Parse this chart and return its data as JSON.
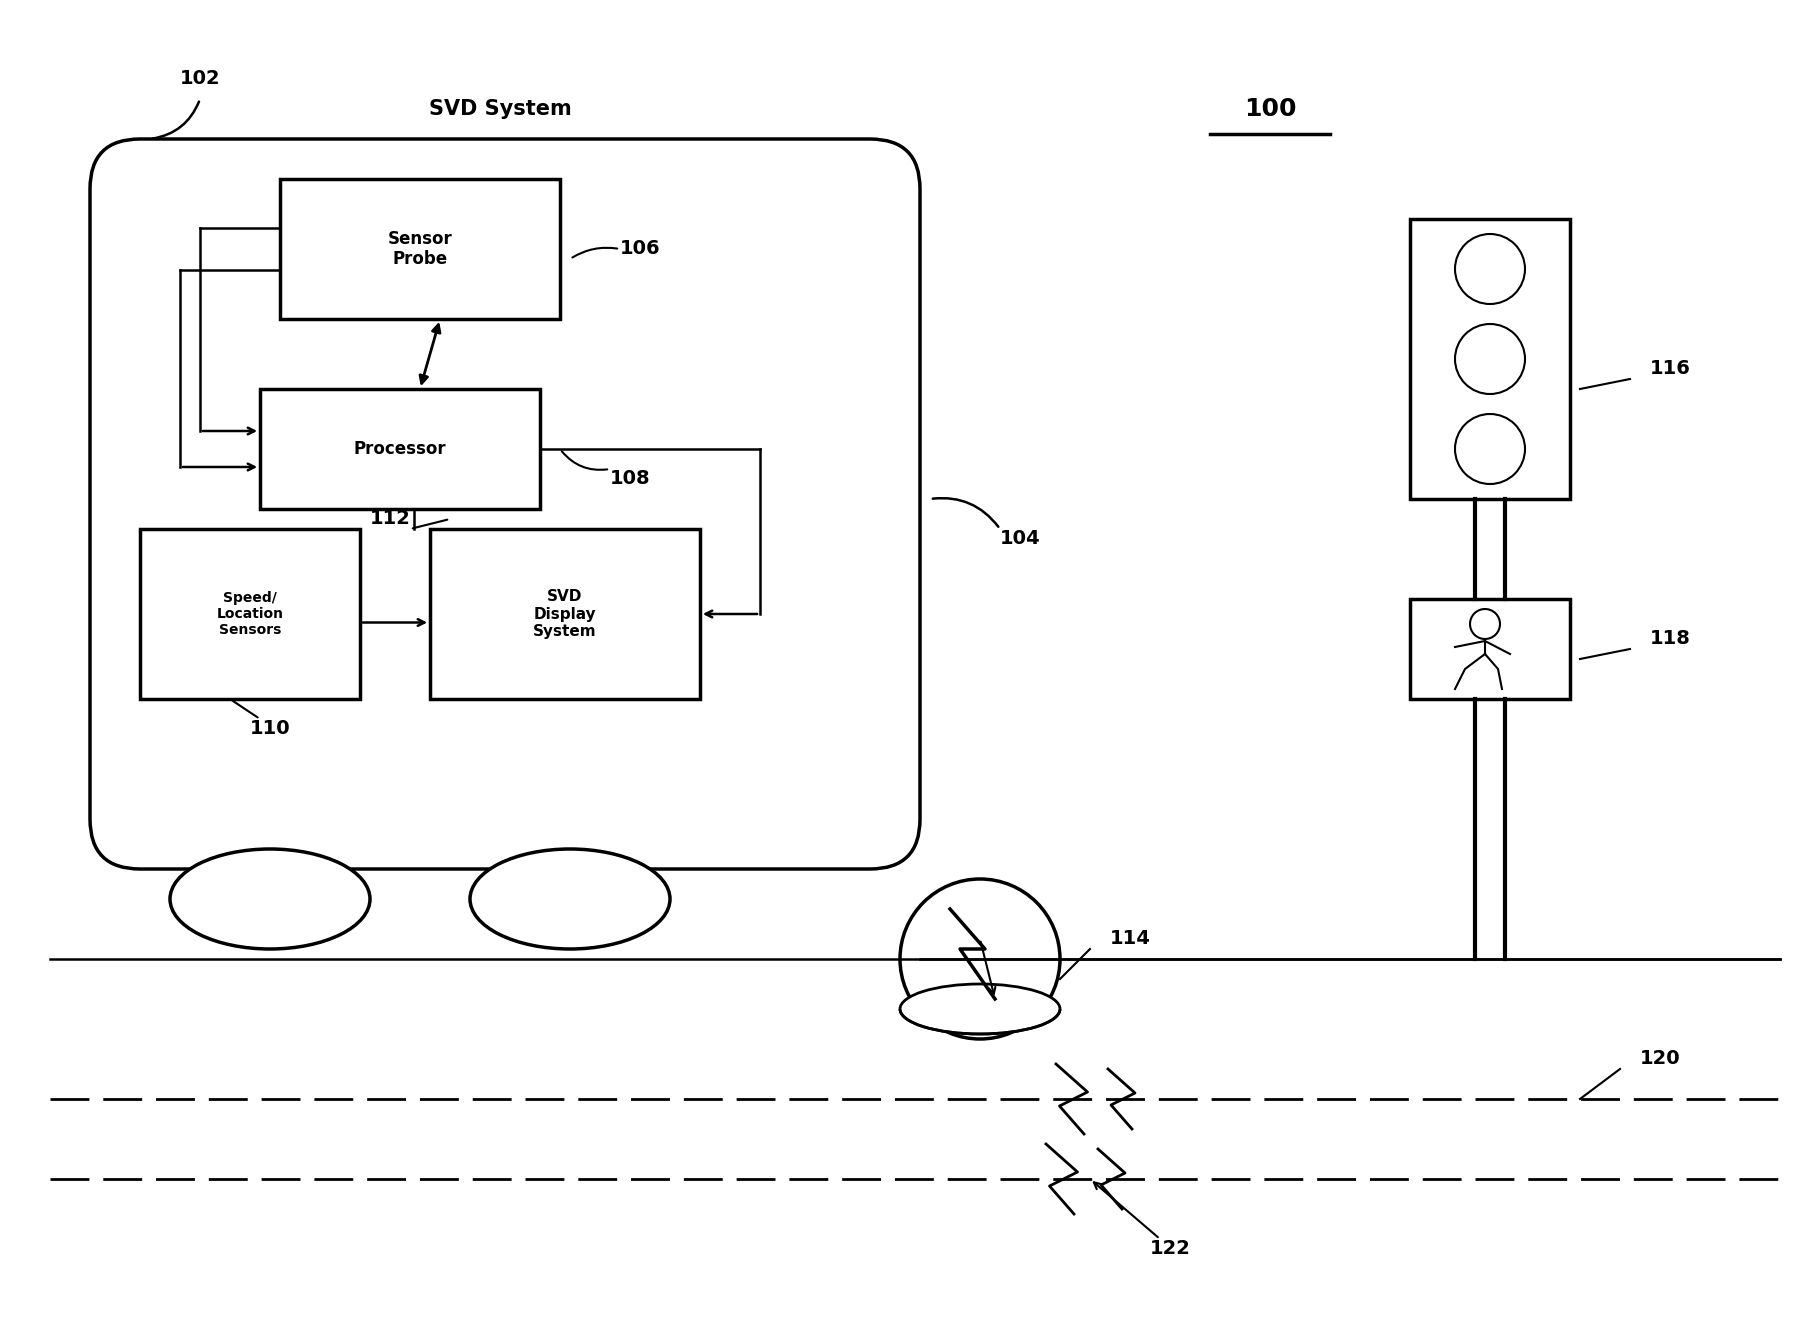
{
  "bg_color": "#ffffff",
  "line_color": "#000000",
  "figure_label": "100",
  "svd_system_label": "102",
  "svd_system_text": "SVD System",
  "vehicle_label": "104",
  "sensor_probe_label": "106",
  "sensor_probe_text": "Sensor\nProbe",
  "processor_label": "108",
  "processor_text": "Processor",
  "svd_display_label": "112",
  "svd_display_text": "SVD\nDisplay\nSystem",
  "speed_location_label": "110",
  "speed_location_text": "Speed/\nLocation\nSensors",
  "stray_voltage_label": "114",
  "traffic_signal_label": "116",
  "pedestrian_label": "118",
  "road_label": "120",
  "stray_markers_label": "122"
}
